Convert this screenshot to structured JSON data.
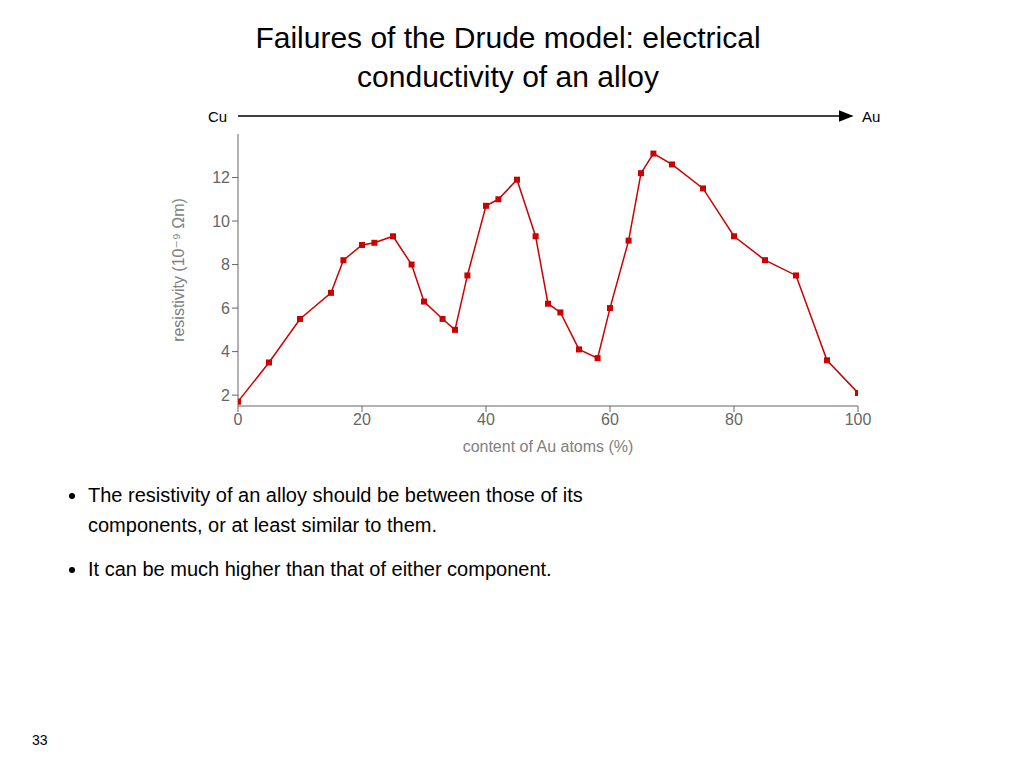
{
  "chart_data": {
    "type": "line",
    "title": "Failures of the Drude model: electrical\nconductivity of an alloy",
    "xlabel": "content of Au atoms (%)",
    "ylabel": "resistivity  (10⁻⁹ Ωm)",
    "x": [
      0,
      5,
      10,
      15,
      17,
      20,
      22,
      25,
      28,
      30,
      33,
      35,
      37,
      40,
      42,
      45,
      48,
      50,
      52,
      55,
      58,
      60,
      63,
      65,
      67,
      70,
      75,
      80,
      85,
      90,
      95,
      100
    ],
    "values": [
      1.7,
      3.5,
      5.5,
      6.7,
      8.2,
      8.9,
      9.0,
      9.3,
      8.0,
      6.3,
      5.5,
      5.0,
      7.5,
      10.7,
      11.0,
      11.9,
      9.3,
      6.2,
      5.8,
      4.1,
      3.7,
      6.0,
      9.1,
      12.2,
      13.1,
      12.6,
      11.5,
      9.3,
      8.2,
      7.5,
      3.6,
      2.1
    ],
    "color": "#cc0000",
    "marker": "square",
    "xlim": [
      0,
      100
    ],
    "ylim": [
      1.5,
      14
    ],
    "xticks": [
      0,
      20,
      40,
      60,
      80,
      100
    ],
    "yticks": [
      2,
      4,
      6,
      8,
      10,
      12
    ],
    "grid": false,
    "annotations": [
      "Cu",
      "Au",
      "The resistivity of an alloy should be between those of its",
      "components, or at least similar to them.",
      "It can be much higher than that of either component."
    ],
    "page": "33"
  }
}
